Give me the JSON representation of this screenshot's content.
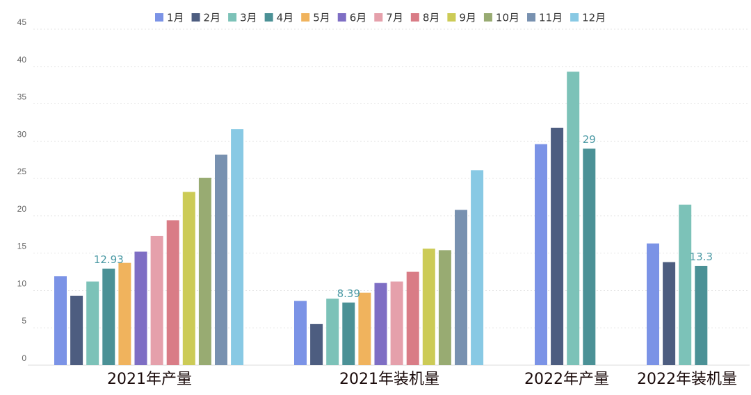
{
  "chart_data": {
    "type": "bar",
    "categories": [
      "2021年产量",
      "2021年装机量",
      "2022年产量",
      "2022年装机量"
    ],
    "ylim": [
      0,
      45
    ],
    "yticks": [
      0,
      5,
      10,
      15,
      20,
      25,
      30,
      35,
      40,
      45
    ],
    "grid": true,
    "legend": "top-center",
    "series": [
      {
        "name": "1月",
        "color": "#7b93e6",
        "values": [
          11.9,
          8.6,
          29.6,
          16.3
        ]
      },
      {
        "name": "2月",
        "color": "#4d5d80",
        "values": [
          9.3,
          5.5,
          31.8,
          13.8
        ]
      },
      {
        "name": "3月",
        "color": "#7cc2b8",
        "values": [
          11.2,
          8.9,
          39.3,
          21.5
        ]
      },
      {
        "name": "4月",
        "color": "#4b9196",
        "values": [
          12.93,
          8.39,
          29,
          13.3
        ],
        "labels": [
          "12.93",
          "8.39",
          "29",
          "13.3"
        ]
      },
      {
        "name": "5月",
        "color": "#f0b35d",
        "values": [
          13.7,
          9.7,
          null,
          null
        ]
      },
      {
        "name": "6月",
        "color": "#7e6ec4",
        "values": [
          15.2,
          11.0,
          null,
          null
        ]
      },
      {
        "name": "7月",
        "color": "#e5a0ab",
        "values": [
          17.3,
          11.2,
          null,
          null
        ]
      },
      {
        "name": "8月",
        "color": "#d97c86",
        "values": [
          19.4,
          12.5,
          null,
          null
        ]
      },
      {
        "name": "9月",
        "color": "#cccb56",
        "values": [
          23.2,
          15.6,
          null,
          null
        ]
      },
      {
        "name": "10月",
        "color": "#98ab72",
        "values": [
          25.1,
          15.4,
          null,
          null
        ]
      },
      {
        "name": "11月",
        "color": "#7891b0",
        "values": [
          28.2,
          20.8,
          null,
          null
        ]
      },
      {
        "name": "12月",
        "color": "#88c9e4",
        "values": [
          31.6,
          26.1,
          null,
          null
        ]
      }
    ]
  }
}
